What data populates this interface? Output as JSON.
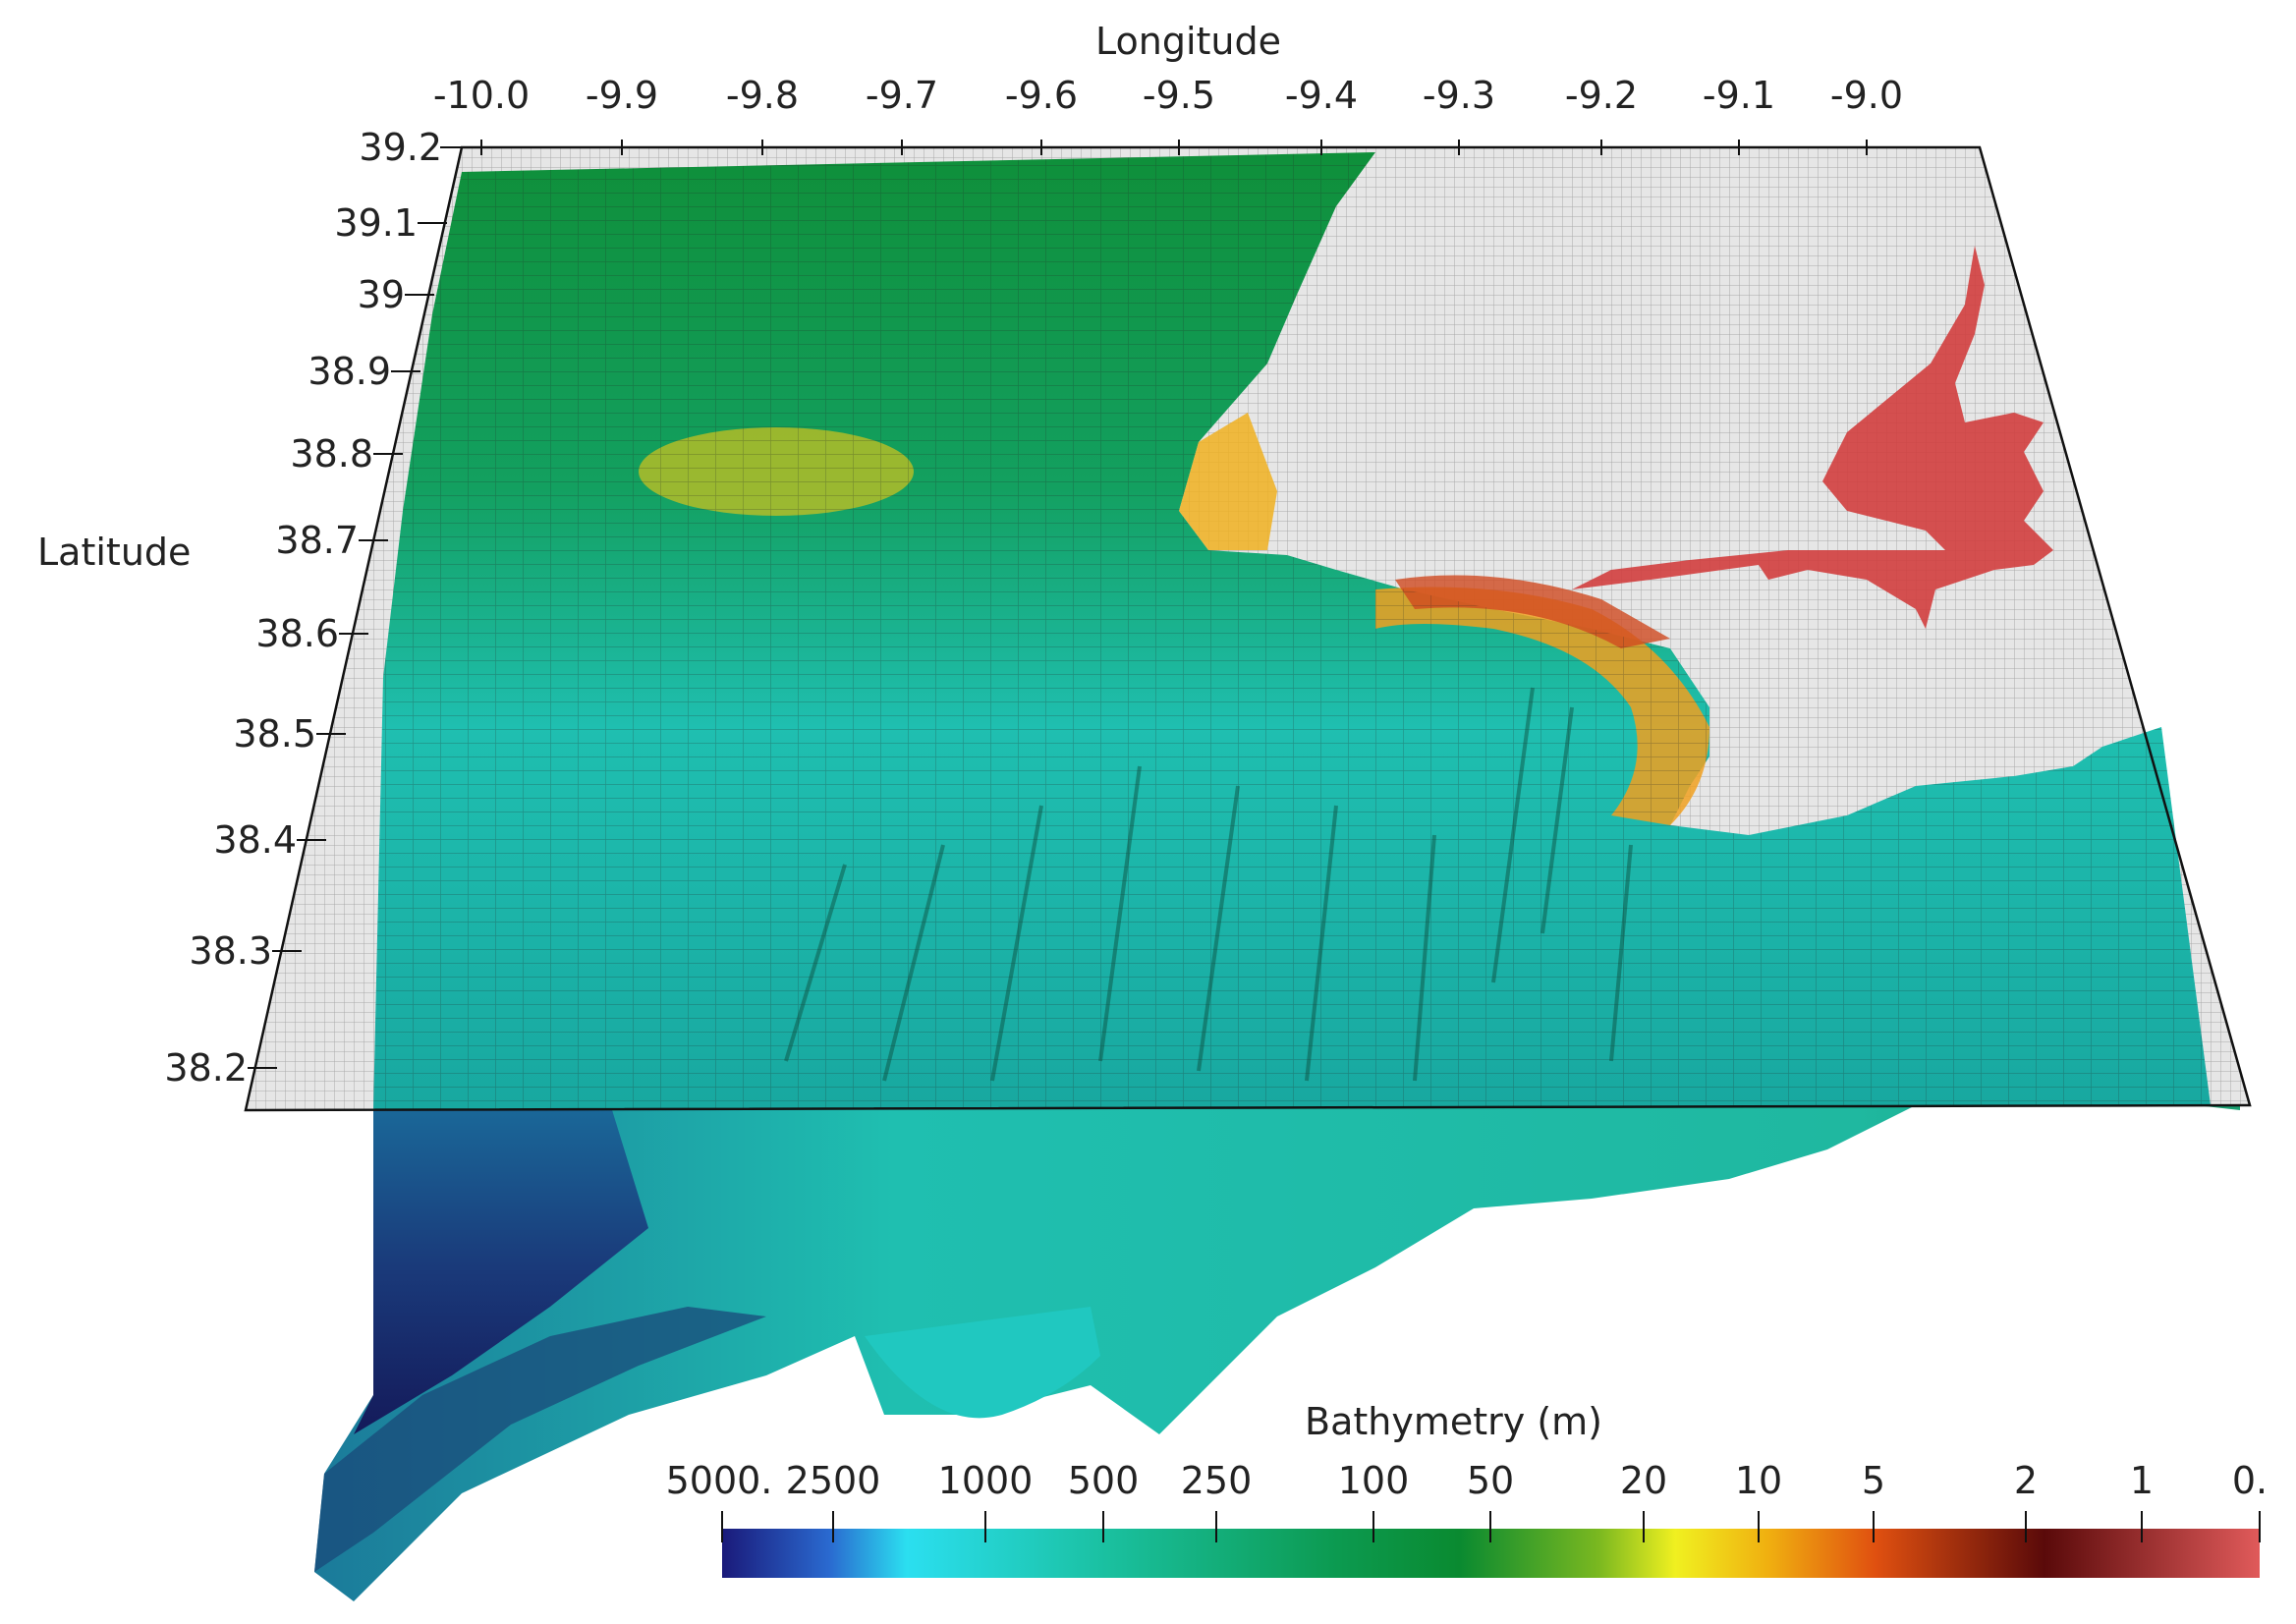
{
  "axes": {
    "x_title": "Longitude",
    "y_title": "Latitude",
    "x_ticks": [
      "-10.0",
      "-9.9",
      "-9.8",
      "-9.7",
      "-9.6",
      "-9.5",
      "-9.4",
      "-9.3",
      "-9.2",
      "-9.1",
      "-9.0"
    ],
    "y_ticks": [
      "39.2",
      "39.1",
      "39",
      "38.9",
      "38.8",
      "38.7",
      "38.6",
      "38.5",
      "38.4",
      "38.3",
      "38.2"
    ]
  },
  "colorbar": {
    "title": "Bathymetry (m)",
    "labels": [
      "5000.",
      "2500",
      "1000",
      "500",
      "250",
      "100",
      "50",
      "20",
      "10",
      "5",
      "2",
      "1",
      "0."
    ],
    "colors": [
      "#1a1a7a",
      "#2bdff0",
      "#1ab890",
      "#0f9a4a",
      "#0a8a30",
      "#4aa81a",
      "#f0f020",
      "#f08a10",
      "#e04a10",
      "#5a0a0a",
      "#e05a5a"
    ]
  },
  "surface_colors": {
    "deep": "#1a2a6a",
    "mid": "#1fbfb0",
    "shelf": "#159a4a",
    "shallow": "#e8d020",
    "estuary": "#d23a3a",
    "land": "#dcdcdc"
  }
}
